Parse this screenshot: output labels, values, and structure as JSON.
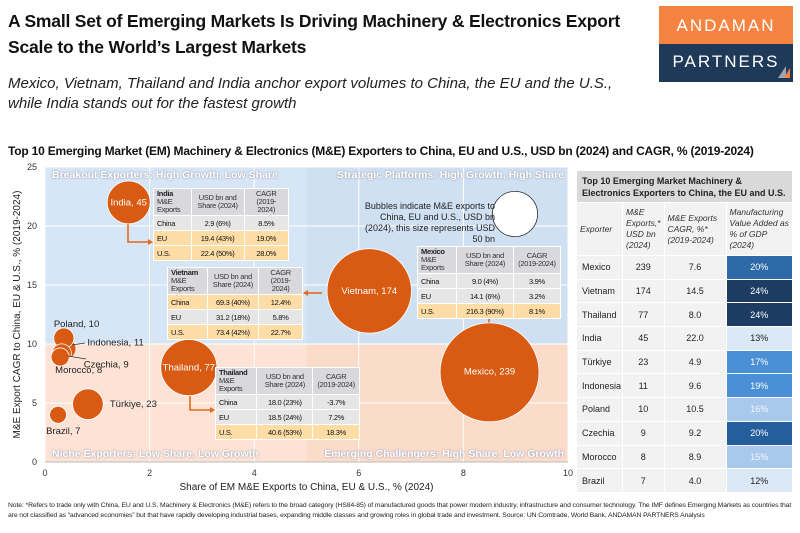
{
  "header": {
    "title": "A Small Set of Emerging Markets Is Driving Machinery & Electronics Export Scale to the World’s Largest Markets",
    "subtitle": "Mexico, Vietnam, Thailand and India anchor export volumes to China, the EU and the U.S., while India stands out for the fastest growth",
    "logo_top": "ANDAMAN",
    "logo_bottom": "PARTNERS"
  },
  "chart_data": {
    "type": "scatter",
    "bubble": true,
    "title": "Top 10 Emerging Market (EM) Machinery & Electronics (M&E) Exporters to China, EU and U.S., USD bn (2024) and CAGR, % (2019-2024)",
    "xlabel": "Share of EM M&E Exports to China, EU & U.S., % (2024)",
    "ylabel": "M&E Export CAGR to China, EU & U.S., % (2019-2024)",
    "xlim": [
      0,
      10
    ],
    "ylim": [
      0,
      25
    ],
    "xticks": [
      "0",
      "2",
      "4",
      "6",
      "8",
      "10"
    ],
    "yticks": [
      "0",
      "5",
      "10",
      "15",
      "20",
      "25"
    ],
    "grid": true,
    "quadrant_split": {
      "x": 5,
      "y": 10
    },
    "quadrants": {
      "top_left": "Breakout Exporters: High Growth, Low Share",
      "top_right": "Strategic Platforms: High Growth, High Share",
      "bottom_left": "Niche Exporters: Low Share, Low Growth",
      "bottom_right": "Emerging Challengers: High Share, Low Growth"
    },
    "size_legend": {
      "text": "Bubbles indicate M&E exports to China, EU and U.S., USD bn (2024), this size represents USD 50 bn",
      "value": 50
    },
    "points": [
      {
        "label": "Mexico, 239",
        "x": 8.5,
        "y": 7.6,
        "size": 239
      },
      {
        "label": "Vietnam, 174",
        "x": 6.2,
        "y": 14.5,
        "size": 174
      },
      {
        "label": "Thailand, 77",
        "x": 2.75,
        "y": 8.0,
        "size": 77
      },
      {
        "label": "India, 45",
        "x": 1.6,
        "y": 22.0,
        "size": 45
      },
      {
        "label": "Türkiye, 23",
        "x": 0.82,
        "y": 4.9,
        "size": 23
      },
      {
        "label": "Indonesia, 11",
        "x": 0.39,
        "y": 9.6,
        "size": 11
      },
      {
        "label": "Poland, 10",
        "x": 0.36,
        "y": 10.5,
        "size": 10
      },
      {
        "label": "Czechia, 9",
        "x": 0.32,
        "y": 9.2,
        "size": 9
      },
      {
        "label": "Morocco, 8",
        "x": 0.29,
        "y": 8.9,
        "size": 8
      },
      {
        "label": "Brazil, 7",
        "x": 0.25,
        "y": 4.0,
        "size": 7
      }
    ],
    "colors": {
      "bubble": "#d95a12",
      "high_growth_bg": "#cfe0f3",
      "low_growth_bg": "#fbdccb"
    }
  },
  "callouts": {
    "col1": "USD bn and Share (2024)",
    "col2": "CAGR (2019-2024)",
    "sub": "M&E Exports",
    "india": {
      "name": "India",
      "rows": [
        [
          "China",
          "2.9 (6%)",
          "8.5%"
        ],
        [
          "EU",
          "19.4 (43%)",
          "19.0%"
        ],
        [
          "U.S.",
          "22.4 (50%)",
          "28.0%"
        ]
      ]
    },
    "vietnam": {
      "name": "Vietnam",
      "rows": [
        [
          "China",
          "69.3 (40%)",
          "12.4%"
        ],
        [
          "EU",
          "31.2 (18%)",
          "5.8%"
        ],
        [
          "U.S.",
          "73.4 (42%)",
          "22.7%"
        ]
      ]
    },
    "mexico": {
      "name": "Mexico",
      "rows": [
        [
          "China",
          "9.0 (4%)",
          "3.9%"
        ],
        [
          "EU",
          "14.1 (6%)",
          "3.2%"
        ],
        [
          "U.S.",
          "216.3 (90%)",
          "8.1%"
        ]
      ]
    },
    "thailand": {
      "name": "Thailand",
      "rows": [
        [
          "China",
          "18.0 (23%)",
          "-3.7%"
        ],
        [
          "EU",
          "18.5 (24%)",
          "7.2%"
        ],
        [
          "U.S.",
          "40.6 (53%)",
          "18.3%"
        ]
      ]
    }
  },
  "table": {
    "title": "Top 10 Emerging Market Machinery & Electronics Exporters to China, the EU and U.S.",
    "headers": [
      "Exporter",
      "M&E Exports,* USD bn (2024)",
      "M&E Exports CAGR, %* (2019-2024)",
      "Manufacturing Value Added as % of GDP (2024)"
    ],
    "rows": [
      {
        "exporter": "Mexico",
        "exports": "239",
        "cagr": "7.6",
        "mva": "20%",
        "mva_color": "#2e6aa8"
      },
      {
        "exporter": "Vietnam",
        "exports": "174",
        "cagr": "14.5",
        "mva": "24%",
        "mva_color": "#1c3c64"
      },
      {
        "exporter": "Thailand",
        "exports": "77",
        "cagr": "8.0",
        "mva": "24%",
        "mva_color": "#1c3c64"
      },
      {
        "exporter": "India",
        "exports": "45",
        "cagr": "22.0",
        "mva": "13%",
        "mva_color": "#dbe8f6"
      },
      {
        "exporter": "Türkiye",
        "exports": "23",
        "cagr": "4.9",
        "mva": "17%",
        "mva_color": "#4b8fd6"
      },
      {
        "exporter": "Indonesia",
        "exports": "11",
        "cagr": "9.6",
        "mva": "19%",
        "mva_color": "#4b8fd6"
      },
      {
        "exporter": "Poland",
        "exports": "10",
        "cagr": "10.5",
        "mva": "16%",
        "mva_color": "#a9c9ec"
      },
      {
        "exporter": "Czechia",
        "exports": "9",
        "cagr": "9.2",
        "mva": "20%",
        "mva_color": "#245e9c"
      },
      {
        "exporter": "Morocco",
        "exports": "8",
        "cagr": "8.9",
        "mva": "15%",
        "mva_color": "#a9c9ec"
      },
      {
        "exporter": "Brazil",
        "exports": "7",
        "cagr": "4.0",
        "mva": "12%",
        "mva_color": "#dbe8f6"
      }
    ]
  },
  "note": "Note: *Refers to trade only with China, EU and U.S. Machinery & Electronics (M&E) refers to the broad category (HS84-85) of manufactured goods that power modern industry, infrastructure and consumer technology. The IMF defines Emerging Markets as countries that are not classified as “advanced economies” but that have rapidly developing industrial bases, expanding middle classes and growing roles in global trade and investment. Source: UN Comtrade, World Bank, ANDAMAN PARTNERS Analysis"
}
